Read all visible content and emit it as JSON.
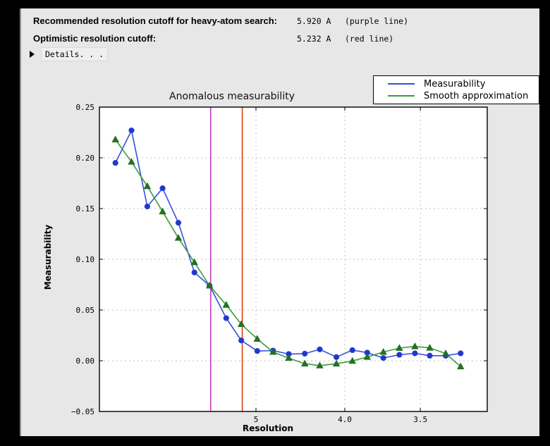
{
  "header": {
    "rows": [
      {
        "label": "Recommended resolution cutoff for heavy-atom search:",
        "value": "5.920 A",
        "note": "(purple line)"
      },
      {
        "label": "Optimistic resolution cutoff:",
        "value": "5.232 A",
        "note": "(red line)"
      }
    ],
    "details_label": "Details. . ."
  },
  "chart_data": {
    "type": "line",
    "title": "Anomalous measurability",
    "xlabel": "Resolution",
    "ylabel": "Measurability",
    "grid": true,
    "legend_position": "top-right",
    "x_axis": {
      "scale": "1_over_d_squared",
      "min_s": 0.000357,
      "max_s": 0.098571,
      "ticks": [
        {
          "d": 5.0,
          "label": "5"
        },
        {
          "d": 4.0,
          "label": "4.0"
        },
        {
          "d": 3.5,
          "label": "3.5"
        }
      ]
    },
    "y_axis": {
      "min": -0.05,
      "max": 0.25,
      "ticks": [
        {
          "v": 0.25,
          "label": "0.25"
        },
        {
          "v": 0.2,
          "label": "0.20"
        },
        {
          "v": 0.15,
          "label": "0.15"
        },
        {
          "v": 0.1,
          "label": "0.10"
        },
        {
          "v": 0.05,
          "label": "0.05"
        },
        {
          "v": 0.0,
          "label": "0.00"
        },
        {
          "v": -0.05,
          "label": "−0.05"
        }
      ]
    },
    "x_resolution_A": [
      15.06,
      10.86,
      8.95,
      7.82,
      7.01,
      6.4,
      5.95,
      5.55,
      5.25,
      4.98,
      4.75,
      4.55,
      4.37,
      4.22,
      4.07,
      3.94,
      3.83,
      3.72,
      3.62,
      3.53,
      3.45,
      3.37,
      3.3
    ],
    "series": [
      {
        "name": "Measurability",
        "marker": "circle",
        "line_color": "#3350dd",
        "marker_color": "#2236c8",
        "values": [
          0.195,
          0.227,
          0.152,
          0.17,
          0.136,
          0.087,
          0.074,
          0.042,
          0.02,
          0.0096,
          0.01,
          0.0066,
          0.007,
          0.0112,
          0.0036,
          0.0105,
          0.008,
          0.0027,
          0.0059,
          0.0073,
          0.005,
          0.005,
          0.0073
        ]
      },
      {
        "name": "Smooth approximation",
        "marker": "triangle",
        "line_color": "#3e9b3e",
        "marker_color": "#247024",
        "values": [
          0.218,
          0.196,
          0.172,
          0.147,
          0.121,
          0.097,
          0.074,
          0.055,
          0.036,
          0.0215,
          0.0086,
          0.0026,
          -0.0029,
          -0.0048,
          -0.0029,
          -0.0002,
          0.0037,
          0.0086,
          0.0125,
          0.0141,
          0.0127,
          0.0071,
          -0.0057
        ]
      }
    ],
    "vlines": [
      {
        "d": 5.92,
        "color": "#c73bc7",
        "name": "purple-cutoff-line"
      },
      {
        "d": 5.232,
        "color": "#d8430e",
        "name": "red-cutoff-line"
      }
    ],
    "colors": {
      "grid": "#c3c3c3",
      "axes_border": "#000000",
      "plot_bg": "#ffffff",
      "figure_bg": "#e7e7e7"
    }
  }
}
